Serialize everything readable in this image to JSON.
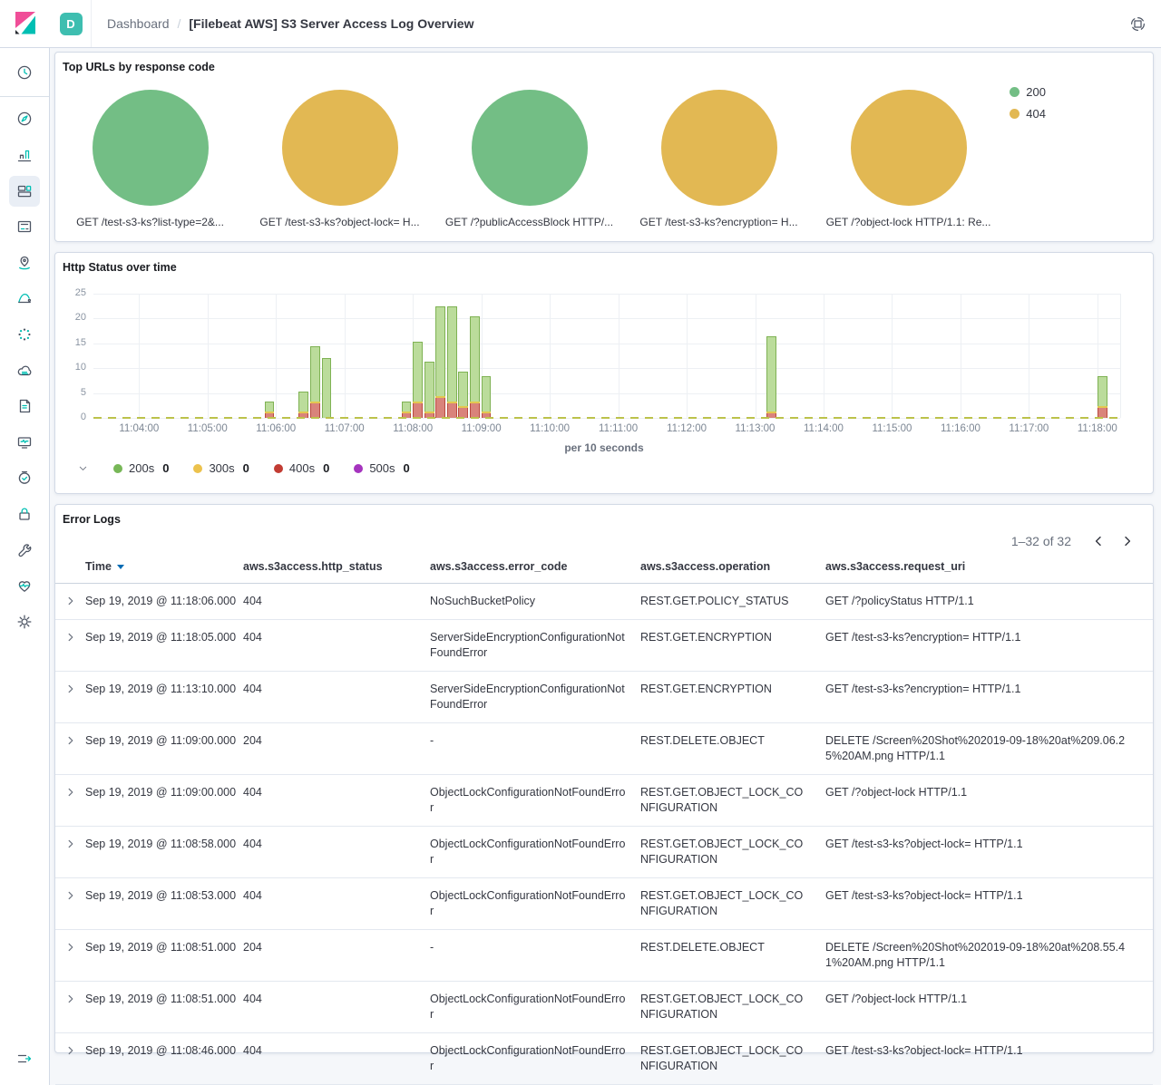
{
  "header": {
    "space_badge": "D",
    "breadcrumb_root": "Dashboard",
    "breadcrumb_separator": "/",
    "title": "[Filebeat AWS] S3 Server Access Log Overview"
  },
  "sidebar": {
    "top_item": "clock-icon",
    "items": [
      "compass-icon",
      "bar-chart-icon",
      "dashboard-icon",
      "canvas-icon",
      "map-pin-icon",
      "swoosh-icon",
      "dots-circle-icon",
      "cloud-icon",
      "scroll-icon",
      "monitor-icon",
      "watch-check-icon",
      "lock-icon",
      "wrench-icon",
      "heartbeat-icon",
      "gear-icon"
    ],
    "selected_index": 2,
    "bottom_item": "menu-collapse-icon"
  },
  "colors": {
    "brand_pink": "#F04E98",
    "brand_navy": "#25282F",
    "brand_teal": "#00BFB3",
    "pie_green": "#73BE85",
    "pie_yellow": "#E2B853",
    "bar_green_fill": "#BBDC9B",
    "bar_green_border": "#7FB254",
    "bar_red_fill": "#D9837B",
    "bar_red_border": "#BA4A40",
    "legend_green": "#77B757",
    "legend_yellow": "#ECC24D",
    "legend_red": "#C23C33",
    "legend_purple": "#A534BE",
    "sort_blue": "#006BB4"
  },
  "chart_data": [
    {
      "id": "top_urls_pies",
      "type": "pie",
      "title": "Top URLs by response code",
      "legend_position": "top-right",
      "legend": [
        {
          "label": "200",
          "color": "#73BE85"
        },
        {
          "label": "404",
          "color": "#E2B853"
        }
      ],
      "pies": [
        {
          "label": "GET /test-s3-ks?list-type=2&...",
          "code": "200",
          "color": "#73BE85",
          "value_pct": 100
        },
        {
          "label": "GET /test-s3-ks?object-lock= H...",
          "code": "404",
          "color": "#E2B853",
          "value_pct": 100
        },
        {
          "label": "GET /?publicAccessBlock HTTP/...",
          "code": "200",
          "color": "#73BE85",
          "value_pct": 100
        },
        {
          "label": "GET /test-s3-ks?encryption= H...",
          "code": "404",
          "color": "#E2B853",
          "value_pct": 100
        },
        {
          "label": "GET /?object-lock HTTP/1.1: Re...",
          "code": "404",
          "color": "#E2B853",
          "value_pct": 100
        }
      ]
    },
    {
      "id": "http_status_over_time",
      "type": "bar",
      "stacked": true,
      "title": "Http Status over time",
      "xlabel": "per 10 seconds",
      "ylim": [
        0,
        25
      ],
      "y_ticks": [
        0,
        5,
        10,
        15,
        20,
        25
      ],
      "x_domain": [
        "11:03:20",
        "11:18:20"
      ],
      "x_ticks": [
        "11:04:00",
        "11:05:00",
        "11:06:00",
        "11:07:00",
        "11:08:00",
        "11:09:00",
        "11:10:00",
        "11:11:00",
        "11:12:00",
        "11:13:00",
        "11:14:00",
        "11:15:00",
        "11:16:00",
        "11:17:00",
        "11:18:00"
      ],
      "legend": [
        {
          "label": "200s",
          "value": "0",
          "color": "#77B757"
        },
        {
          "label": "300s",
          "value": "0",
          "color": "#ECC24D"
        },
        {
          "label": "400s",
          "value": "0",
          "color": "#C23C33"
        },
        {
          "label": "500s",
          "value": "0",
          "color": "#A534BE"
        }
      ],
      "bars": [
        {
          "time": "11:05:50",
          "values": {
            "200s": 2,
            "300s": 0,
            "400s": 1,
            "500s": 0
          }
        },
        {
          "time": "11:06:20",
          "values": {
            "200s": 4,
            "300s": 0,
            "400s": 1,
            "500s": 0
          }
        },
        {
          "time": "11:06:30",
          "values": {
            "200s": 11,
            "300s": 0,
            "400s": 3,
            "500s": 0
          }
        },
        {
          "time": "11:06:40",
          "values": {
            "200s": 12,
            "300s": 0,
            "400s": 0,
            "500s": 0
          }
        },
        {
          "time": "11:07:50",
          "values": {
            "200s": 2,
            "300s": 0,
            "400s": 1,
            "500s": 0
          }
        },
        {
          "time": "11:08:00",
          "values": {
            "200s": 12,
            "300s": 0,
            "400s": 3,
            "500s": 0
          }
        },
        {
          "time": "11:08:10",
          "values": {
            "200s": 10,
            "300s": 0,
            "400s": 1,
            "500s": 0
          }
        },
        {
          "time": "11:08:20",
          "values": {
            "200s": 18,
            "300s": 0,
            "400s": 4,
            "500s": 0
          }
        },
        {
          "time": "11:08:30",
          "values": {
            "200s": 19,
            "300s": 0,
            "400s": 3,
            "500s": 0
          }
        },
        {
          "time": "11:08:40",
          "values": {
            "200s": 7,
            "300s": 0,
            "400s": 2,
            "500s": 0
          }
        },
        {
          "time": "11:08:50",
          "values": {
            "200s": 17,
            "300s": 0,
            "400s": 3,
            "500s": 0
          }
        },
        {
          "time": "11:09:00",
          "values": {
            "200s": 7,
            "300s": 0,
            "400s": 1,
            "500s": 0
          }
        },
        {
          "time": "11:13:10",
          "values": {
            "200s": 15,
            "300s": 0,
            "400s": 1,
            "500s": 0
          }
        },
        {
          "time": "11:18:00",
          "values": {
            "200s": 6,
            "300s": 0,
            "400s": 2,
            "500s": 0
          }
        }
      ]
    }
  ],
  "panels": {
    "error_logs": {
      "title": "Error Logs",
      "pagination": "1–32 of 32",
      "sort": {
        "column": "Time",
        "direction": "desc"
      },
      "columns": [
        "Time",
        "aws.s3access.http_status",
        "aws.s3access.error_code",
        "aws.s3access.operation",
        "aws.s3access.request_uri"
      ],
      "rows": [
        {
          "time": "Sep 19, 2019 @ 11:18:06.000",
          "http_status": "404",
          "error_code": "NoSuchBucketPolicy",
          "operation": "REST.GET.POLICY_STATUS",
          "request_uri": "GET /?policyStatus HTTP/1.1"
        },
        {
          "time": "Sep 19, 2019 @ 11:18:05.000",
          "http_status": "404",
          "error_code": "ServerSideEncryptionConfigurationNotFoundError",
          "operation": "REST.GET.ENCRYPTION",
          "request_uri": "GET /test-s3-ks?encryption= HTTP/1.1"
        },
        {
          "time": "Sep 19, 2019 @ 11:13:10.000",
          "http_status": "404",
          "error_code": "ServerSideEncryptionConfigurationNotFoundError",
          "operation": "REST.GET.ENCRYPTION",
          "request_uri": "GET /test-s3-ks?encryption= HTTP/1.1"
        },
        {
          "time": "Sep 19, 2019 @ 11:09:00.000",
          "http_status": "204",
          "error_code": "-",
          "operation": "REST.DELETE.OBJECT",
          "request_uri": "DELETE /Screen%20Shot%202019-09-18%20at%209.06.25%20AM.png HTTP/1.1"
        },
        {
          "time": "Sep 19, 2019 @ 11:09:00.000",
          "http_status": "404",
          "error_code": "ObjectLockConfigurationNotFoundError",
          "operation": "REST.GET.OBJECT_LOCK_CONFIGURATION",
          "request_uri": "GET /?object-lock HTTP/1.1"
        },
        {
          "time": "Sep 19, 2019 @ 11:08:58.000",
          "http_status": "404",
          "error_code": "ObjectLockConfigurationNotFoundError",
          "operation": "REST.GET.OBJECT_LOCK_CONFIGURATION",
          "request_uri": "GET /test-s3-ks?object-lock= HTTP/1.1"
        },
        {
          "time": "Sep 19, 2019 @ 11:08:53.000",
          "http_status": "404",
          "error_code": "ObjectLockConfigurationNotFoundError",
          "operation": "REST.GET.OBJECT_LOCK_CONFIGURATION",
          "request_uri": "GET /test-s3-ks?object-lock= HTTP/1.1"
        },
        {
          "time": "Sep 19, 2019 @ 11:08:51.000",
          "http_status": "204",
          "error_code": "-",
          "operation": "REST.DELETE.OBJECT",
          "request_uri": "DELETE /Screen%20Shot%202019-09-18%20at%208.55.41%20AM.png HTTP/1.1"
        },
        {
          "time": "Sep 19, 2019 @ 11:08:51.000",
          "http_status": "404",
          "error_code": "ObjectLockConfigurationNotFoundError",
          "operation": "REST.GET.OBJECT_LOCK_CONFIGURATION",
          "request_uri": "GET /?object-lock HTTP/1.1"
        },
        {
          "time": "Sep 19, 2019 @ 11:08:46.000",
          "http_status": "404",
          "error_code": "ObjectLockConfigurationNotFoundError",
          "operation": "REST.GET.OBJECT_LOCK_CONFIGURATION",
          "request_uri": "GET /test-s3-ks?object-lock= HTTP/1.1"
        }
      ]
    }
  }
}
